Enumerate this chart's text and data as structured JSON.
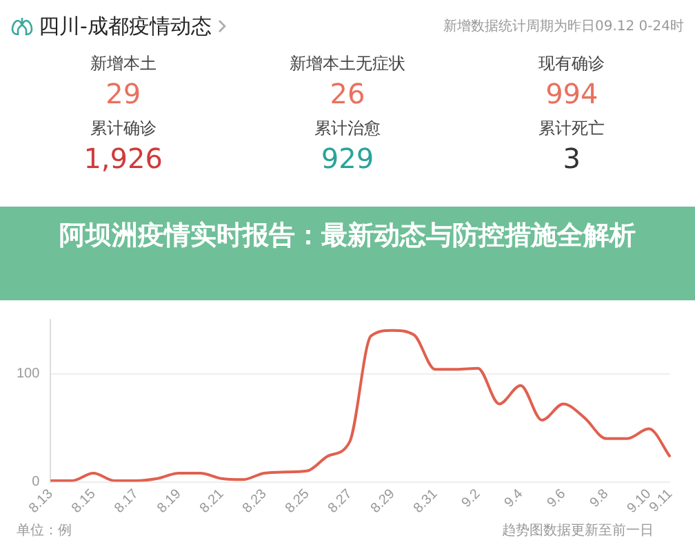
{
  "chart_data": [
    {
      "type": "other",
      "title": "四川-成都疫情动态",
      "subtitle": "新增数据统计周期为昨日09.12 0-24时",
      "annotations": [
        "新增本土",
        "29",
        "新增本土无症状",
        "26",
        "现有确诊",
        "994",
        "累计确诊",
        "1,926",
        "累计治愈",
        "929",
        "累计死亡",
        "3"
      ],
      "colors": [
        "#e8715f",
        "#e8715f",
        "#e8715f",
        "#d03a3a",
        "#2aa39a",
        "#333333"
      ]
    },
    {
      "type": "line",
      "title": "阿坝洲疫情实时报告：最新动态与防控措施全解析",
      "categories": [
        "8.13",
        null,
        "8.15",
        null,
        "8.17",
        null,
        "8.19",
        null,
        "8.21",
        null,
        "8.23",
        null,
        "8.25",
        null,
        "8.27",
        null,
        "8.29",
        null,
        "8.31",
        null,
        "9.2",
        null,
        "9.4",
        null,
        "9.6",
        null,
        "9.8",
        null,
        "9.10",
        "9.11"
      ],
      "series": [
        {
          "color": "#e0604f",
          "values": [
            1,
            1,
            8,
            1,
            1,
            3,
            8,
            8,
            3,
            2,
            8,
            9,
            10,
            24,
            37,
            135,
            140,
            136,
            104,
            104,
            105,
            72,
            89,
            57,
            72,
            59,
            40,
            40,
            49,
            23
          ]
        }
      ],
      "ylim": [
        0,
        150
      ],
      "yticks": [
        0,
        100
      ],
      "grid": "y",
      "legend": false,
      "marker": "none",
      "line_style": "solid",
      "annotations": [
        "单位：例",
        "趋势图数据更新至前一日"
      ]
    }
  ]
}
